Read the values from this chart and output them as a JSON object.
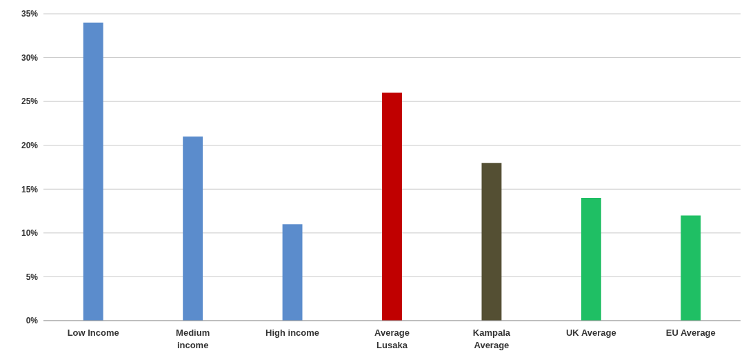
{
  "chart_data": {
    "type": "bar",
    "categories": [
      "Low Income",
      "Medium income",
      "High income",
      "Average Lusaka",
      "Kampala Average",
      "UK Average",
      "EU Average"
    ],
    "values": [
      34,
      21,
      11,
      26,
      18,
      14,
      12
    ],
    "colors": [
      "#5b8ccc",
      "#5b8ccc",
      "#5b8ccc",
      "#c00000",
      "#544f33",
      "#1fbf64",
      "#1fbf64"
    ],
    "ylim": [
      0,
      35
    ],
    "yticks": [
      {
        "value": 0,
        "label": "0%"
      },
      {
        "value": 5,
        "label": "5%"
      },
      {
        "value": 10,
        "label": "10%"
      },
      {
        "value": 15,
        "label": "15%"
      },
      {
        "value": 20,
        "label": "20%"
      },
      {
        "value": 25,
        "label": "25%"
      },
      {
        "value": 30,
        "label": "30%"
      },
      {
        "value": 35,
        "label": "35%"
      }
    ],
    "grid": "y",
    "legend": false
  }
}
